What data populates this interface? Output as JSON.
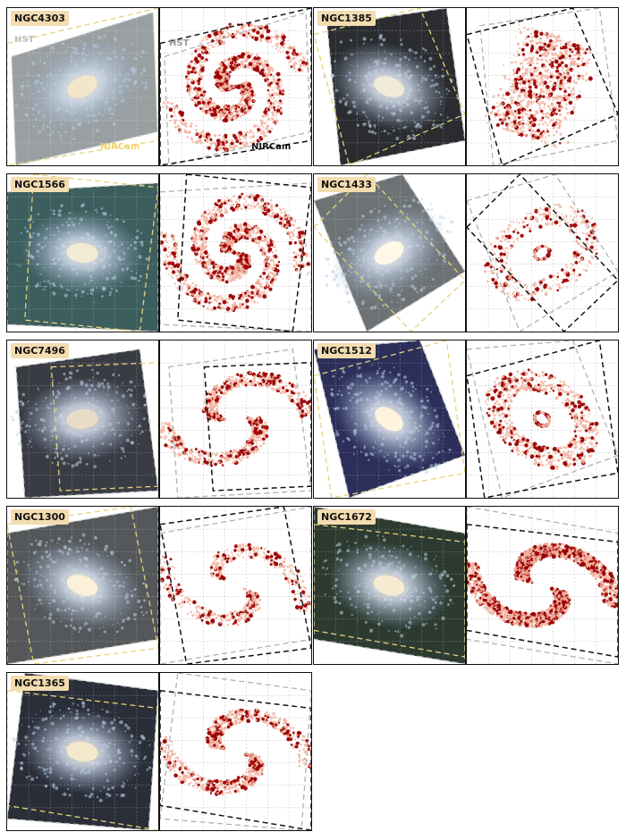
{
  "galaxies": [
    {
      "name": "NGC4303",
      "bg": "#9aa0a2",
      "core": "#f4e6c8",
      "arms": "spiral-tight",
      "density": "high"
    },
    {
      "name": "NGC1385",
      "bg": "#2a2c30",
      "core": "#f0ead8",
      "arms": "irregular",
      "density": "medium"
    },
    {
      "name": "NGC1566",
      "bg": "#3d5e5e",
      "core": "#f3ead4",
      "arms": "grand-design",
      "density": "high"
    },
    {
      "name": "NGC1433",
      "bg": "#6d7274",
      "core": "#fff8e6",
      "arms": "barred-ring",
      "density": "low"
    },
    {
      "name": "NGC7496",
      "bg": "#3a3c44",
      "core": "#e8dcc8",
      "arms": "barred",
      "density": "medium"
    },
    {
      "name": "NGC1512",
      "bg": "#2c2f5a",
      "core": "#fdf3de",
      "arms": "barred-ring",
      "density": "medium"
    },
    {
      "name": "NGC1300",
      "bg": "#55585a",
      "core": "#fbf0d8",
      "arms": "barred",
      "density": "low"
    },
    {
      "name": "NGC1672",
      "bg": "#2c3a30",
      "core": "#f6ead0",
      "arms": "barred",
      "density": "very-high"
    },
    {
      "name": "NGC1365",
      "bg": "#2a2e38",
      "core": "#f5e8cc",
      "arms": "barred",
      "density": "medium"
    }
  ],
  "annotations": {
    "hst": "HST",
    "nircam": "NIRCam"
  },
  "colors": {
    "dot_light": "#f2b3a0",
    "dot_dark": "#9b0000",
    "hst_fov_image": "#c9c9c9",
    "nircam_fov_image": "#e6d27a",
    "hst_fov_map": "#b0b0b0",
    "nircam_fov_map": "#111111"
  }
}
